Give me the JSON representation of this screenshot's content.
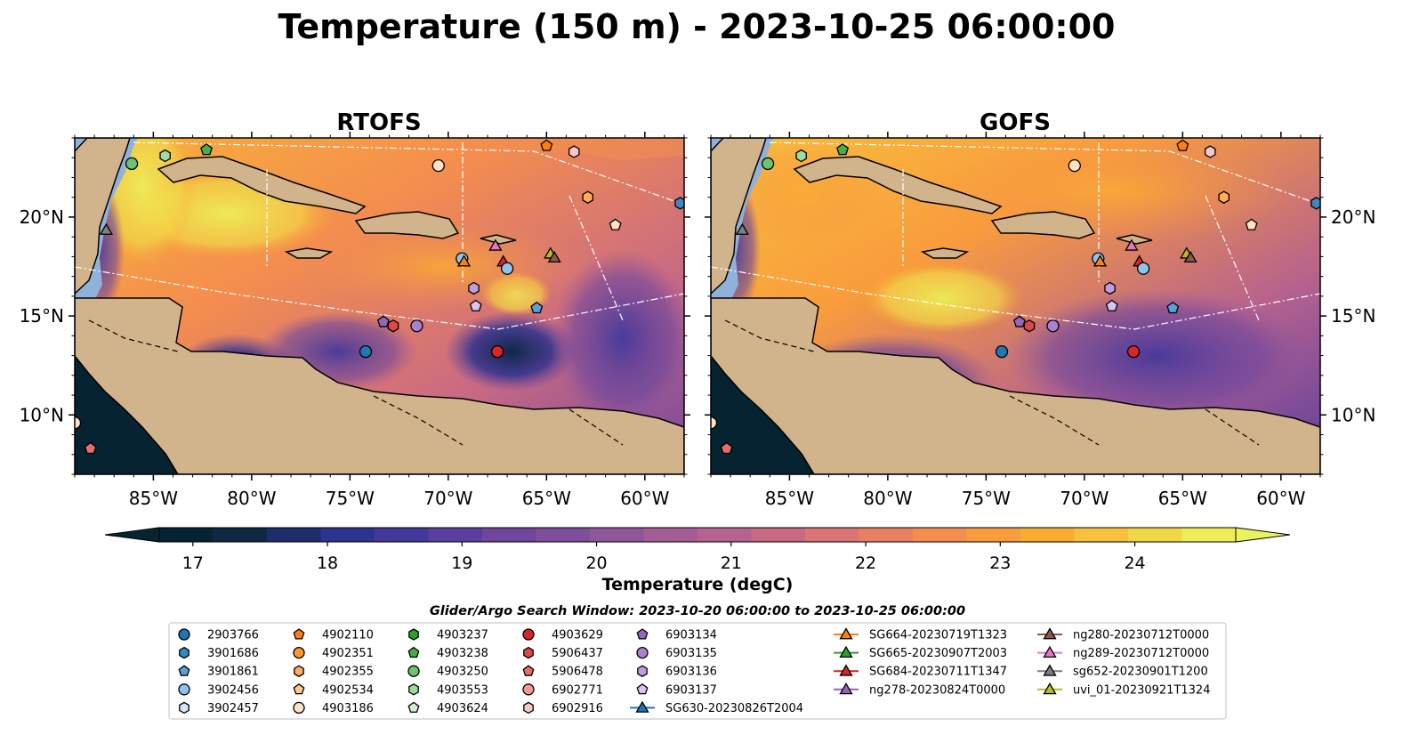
{
  "title": "Temperature (150 m) - 2023-10-25 06:00:00",
  "panels": [
    {
      "id": "rtofs",
      "title": "RTOFS",
      "side": "left"
    },
    {
      "id": "gofs",
      "title": "GOFS",
      "side": "right"
    }
  ],
  "map_extent": {
    "lon": [
      -89,
      -58
    ],
    "lat": [
      7,
      24
    ]
  },
  "lon_ticks": [
    {
      "value": -85,
      "label": "85°W"
    },
    {
      "value": -80,
      "label": "80°W"
    },
    {
      "value": -75,
      "label": "75°W"
    },
    {
      "value": -70,
      "label": "70°W"
    },
    {
      "value": -65,
      "label": "65°W"
    },
    {
      "value": -60,
      "label": "60°W"
    }
  ],
  "lat_ticks": [
    {
      "value": 10,
      "label": "10°N"
    },
    {
      "value": 15,
      "label": "15°N"
    },
    {
      "value": 20,
      "label": "20°N"
    }
  ],
  "colorbar": {
    "label": "Temperature (degC)",
    "vmin": 16.75,
    "vmax": 24.75,
    "step": 0.5,
    "ticks": [
      "17",
      "18",
      "19",
      "20",
      "21",
      "22",
      "23",
      "24"
    ],
    "colors": [
      "#052331",
      "#0e2846",
      "#1d2c6b",
      "#2e3290",
      "#43389b",
      "#5a3e9f",
      "#6e469e",
      "#7f4f9d",
      "#90569b",
      "#a35c96",
      "#b6628e",
      "#c96a83",
      "#db7474",
      "#ea8062",
      "#f48e4e",
      "#f99c3d",
      "#fbab32",
      "#f8c03c",
      "#f3d648",
      "#eeed57"
    ],
    "under": "#052331",
    "over": "#e9f45a"
  },
  "search_window": "Glider/Argo Search Window: 2023-10-20 06:00:00 to 2023-10-25 06:00:00",
  "legend": [
    {
      "label": "2903766",
      "marker": "circle",
      "color": "#1f77b4"
    },
    {
      "label": "3901686",
      "marker": "hexagon",
      "color": "#3b87c0"
    },
    {
      "label": "3901861",
      "marker": "pentagon",
      "color": "#5aa0d8"
    },
    {
      "label": "3902456",
      "marker": "circle",
      "color": "#8fc4ee"
    },
    {
      "label": "3902457",
      "marker": "hexagon",
      "color": "#d4e6f8"
    },
    {
      "label": "4902110",
      "marker": "pentagon",
      "color": "#ff7f0e"
    },
    {
      "label": "4902351",
      "marker": "circle",
      "color": "#ff9630"
    },
    {
      "label": "4902355",
      "marker": "hexagon",
      "color": "#ffad5c"
    },
    {
      "label": "4902534",
      "marker": "pentagon",
      "color": "#ffc88a"
    },
    {
      "label": "4903186",
      "marker": "circle",
      "color": "#ffe2c4"
    },
    {
      "label": "4903237",
      "marker": "hexagon",
      "color": "#2ca02c"
    },
    {
      "label": "4903238",
      "marker": "pentagon",
      "color": "#45b045"
    },
    {
      "label": "4903250",
      "marker": "circle",
      "color": "#6cc46c"
    },
    {
      "label": "4903553",
      "marker": "hexagon",
      "color": "#9fdc9f"
    },
    {
      "label": "4903624",
      "marker": "pentagon",
      "color": "#cff2cc"
    },
    {
      "label": "4903629",
      "marker": "circle",
      "color": "#d62728"
    },
    {
      "label": "5906437",
      "marker": "hexagon",
      "color": "#e04848"
    },
    {
      "label": "5906478",
      "marker": "pentagon",
      "color": "#e96c6c"
    },
    {
      "label": "6902771",
      "marker": "circle",
      "color": "#f29a9a"
    },
    {
      "label": "6902916",
      "marker": "hexagon",
      "color": "#f8c6c6"
    },
    {
      "label": "6903134",
      "marker": "pentagon",
      "color": "#9467bd"
    },
    {
      "label": "6903135",
      "marker": "circle",
      "color": "#a982cf"
    },
    {
      "label": "6903136",
      "marker": "hexagon",
      "color": "#bf9ee0"
    },
    {
      "label": "6903137",
      "marker": "pentagon",
      "color": "#d8c3f0"
    },
    {
      "label": "SG630-20230826T2004",
      "marker": "triangle-line",
      "color": "#1f77b4"
    },
    {
      "label": "SG664-20230719T1323",
      "marker": "triangle-line",
      "color": "#ff7f0e"
    },
    {
      "label": "SG665-20230907T2003",
      "marker": "triangle-line",
      "color": "#2ca02c"
    },
    {
      "label": "SG684-20230711T1347",
      "marker": "triangle-line",
      "color": "#d62728"
    },
    {
      "label": "ng278-20230824T0000",
      "marker": "triangle-line",
      "color": "#9467bd"
    },
    {
      "label": "ng280-20230712T0000",
      "marker": "triangle-line",
      "color": "#8c564b"
    },
    {
      "label": "ng289-20230712T0000",
      "marker": "triangle-line",
      "color": "#e377c2"
    },
    {
      "label": "sg652-20230901T1200",
      "marker": "triangle-line",
      "color": "#7f7f7f"
    },
    {
      "label": "uvi_01-20230921T1324",
      "marker": "triangle-line",
      "color": "#bcbd22"
    }
  ],
  "markers": [
    {
      "lon": -86.1,
      "lat": 22.7,
      "marker": "circle",
      "color": "#6cc46c"
    },
    {
      "lon": -84.4,
      "lat": 23.1,
      "marker": "hexagon",
      "color": "#9fdc9f"
    },
    {
      "lon": -82.3,
      "lat": 23.4,
      "marker": "pentagon",
      "color": "#45b045"
    },
    {
      "lon": -65.0,
      "lat": 23.6,
      "marker": "pentagon",
      "color": "#ff7f0e"
    },
    {
      "lon": -63.6,
      "lat": 23.3,
      "marker": "hexagon",
      "color": "#f8c6c6"
    },
    {
      "lon": -70.5,
      "lat": 22.6,
      "marker": "circle",
      "color": "#ffe2c4"
    },
    {
      "lon": -62.9,
      "lat": 21.0,
      "marker": "hexagon",
      "color": "#ffad5c"
    },
    {
      "lon": -58.2,
      "lat": 20.7,
      "marker": "hexagon",
      "color": "#3b87c0"
    },
    {
      "lon": -61.5,
      "lat": 19.6,
      "marker": "pentagon",
      "color": "#ffe2c4"
    },
    {
      "lon": -87.4,
      "lat": 19.3,
      "marker": "triangle",
      "color": "#7f7f7f"
    },
    {
      "lon": -67.6,
      "lat": 18.5,
      "marker": "triangle",
      "color": "#e377c2"
    },
    {
      "lon": -64.8,
      "lat": 18.1,
      "marker": "triangle",
      "color": "#bcbd22"
    },
    {
      "lon": -64.6,
      "lat": 17.9,
      "marker": "triangle",
      "color": "#8c564b"
    },
    {
      "lon": -67.2,
      "lat": 17.7,
      "marker": "triangle",
      "color": "#d62728"
    },
    {
      "lon": -69.3,
      "lat": 17.9,
      "marker": "circle",
      "color": "#8fc4ee"
    },
    {
      "lon": -69.2,
      "lat": 17.7,
      "marker": "triangle",
      "color": "#ff7f0e"
    },
    {
      "lon": -67.0,
      "lat": 17.4,
      "marker": "circle",
      "color": "#8fc4ee"
    },
    {
      "lon": -68.7,
      "lat": 16.4,
      "marker": "hexagon",
      "color": "#bf9ee0"
    },
    {
      "lon": -68.6,
      "lat": 15.5,
      "marker": "pentagon",
      "color": "#d8c3f0"
    },
    {
      "lon": -65.5,
      "lat": 15.4,
      "marker": "pentagon",
      "color": "#5aa0d8"
    },
    {
      "lon": -73.3,
      "lat": 14.7,
      "marker": "pentagon",
      "color": "#9467bd"
    },
    {
      "lon": -72.8,
      "lat": 14.5,
      "marker": "hexagon",
      "color": "#e04848"
    },
    {
      "lon": -71.6,
      "lat": 14.5,
      "marker": "circle",
      "color": "#a982cf"
    },
    {
      "lon": -74.2,
      "lat": 13.2,
      "marker": "circle",
      "color": "#1f77b4"
    },
    {
      "lon": -67.5,
      "lat": 13.2,
      "marker": "circle",
      "color": "#d62728"
    },
    {
      "lon": -88.2,
      "lat": 8.3,
      "marker": "pentagon",
      "color": "#e96c6c"
    },
    {
      "lon": -89.0,
      "lat": 9.6,
      "marker": "circle",
      "color": "#ffe2c4"
    }
  ]
}
